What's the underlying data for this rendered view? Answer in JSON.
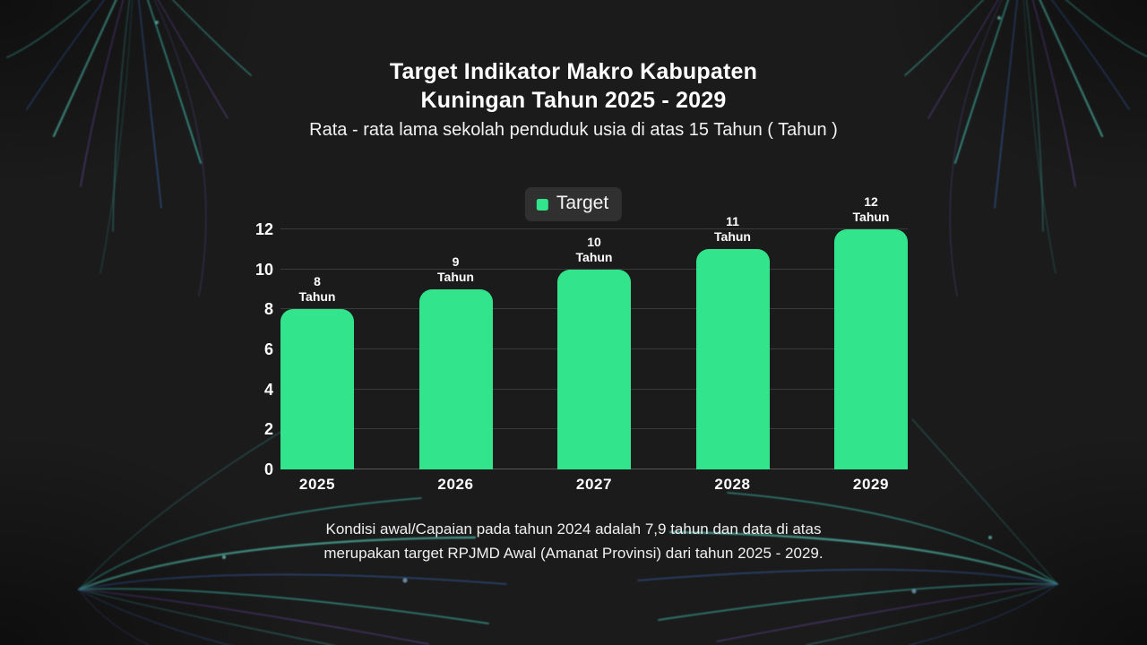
{
  "page": {
    "title": "Target Indikator Makro Kabupaten Kuningan Tahun 2025 - 2029",
    "subtitle": "Rata - rata lama sekolah penduduk usia di atas 15 Tahun ( Tahun )",
    "caption": "Kondisi awal/Capaian pada tahun 2024 adalah 7,9 tahun dan data di atas merupakan target RPJMD Awal (Amanat Provinsi) dari tahun 2025 - 2029."
  },
  "legend": {
    "label": "Target",
    "swatch_color": "#32e48c",
    "background": "#303030"
  },
  "colors": {
    "background": "#1b1b1b",
    "bar": "#32e48c",
    "text": "#ffffff",
    "gridline": "#3a3a3a"
  },
  "chart_data": {
    "type": "bar",
    "title": "Target Indikator Makro Kabupaten Kuningan Tahun 2025 - 2029",
    "subtitle": "Rata - rata lama sekolah penduduk usia di atas 15 Tahun ( Tahun )",
    "categories": [
      "2025",
      "2026",
      "2027",
      "2028",
      "2029"
    ],
    "series": [
      {
        "name": "Target",
        "values": [
          8,
          9,
          10,
          11,
          12
        ]
      }
    ],
    "unit": "Tahun",
    "data_labels": [
      "8 Tahun",
      "9 Tahun",
      "10 Tahun",
      "11 Tahun",
      "12 Tahun"
    ],
    "xlabel": "",
    "ylabel": "",
    "ylim": [
      0,
      12
    ],
    "y_ticks": [
      0,
      2,
      4,
      6,
      8,
      10,
      12
    ],
    "grid": true,
    "legend_position": "top-center",
    "bar_color": "#32e48c",
    "annotation": "Kondisi awal/Capaian pada tahun 2024 adalah 7,9 tahun dan data di atas merupakan target RPJMD Awal (Amanat Provinsi) dari tahun 2025 - 2029."
  }
}
